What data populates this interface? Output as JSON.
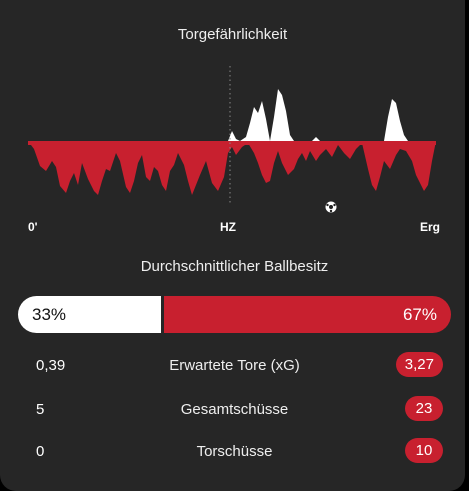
{
  "momentum": {
    "title": "Torgefährlichkeit",
    "start_label": "0'",
    "half_label": "HZ",
    "end_label": "Erg",
    "home_color": "#ffffff",
    "away_color": "#c8202f",
    "goal_icon": "soccer-ball-icon"
  },
  "possession": {
    "title": "Durchschnittlicher Ballbesitz",
    "home": "33%",
    "away": "67%",
    "home_fraction": 0.33
  },
  "stats": [
    {
      "home": "0,39",
      "label": "Erwartete Tore (xG)",
      "away": "3,27"
    },
    {
      "home": "5",
      "label": "Gesamtschüsse",
      "away": "23"
    },
    {
      "home": "0",
      "label": "Torschüsse",
      "away": "10"
    }
  ]
}
